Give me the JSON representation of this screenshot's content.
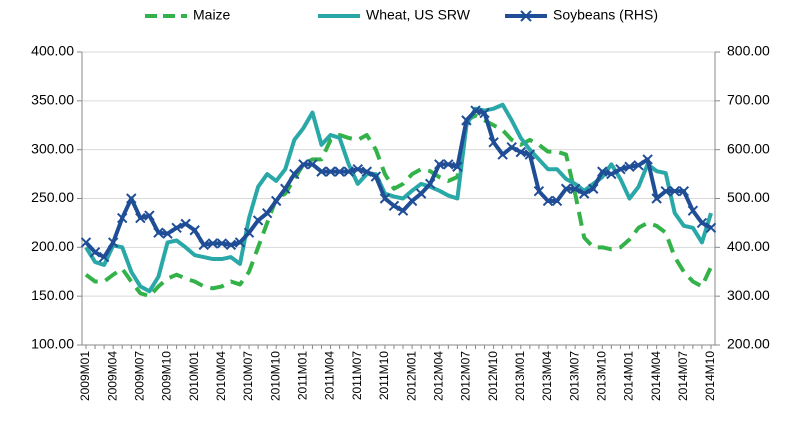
{
  "chart_data": {
    "type": "line",
    "categories": [
      "2009M01",
      null,
      null,
      "2009M04",
      null,
      null,
      "2009M07",
      null,
      null,
      "2009M10",
      null,
      null,
      "2010M01",
      null,
      null,
      "2010M04",
      null,
      null,
      "2010M07",
      null,
      null,
      "2010M10",
      null,
      null,
      "2011M01",
      null,
      null,
      "2011M04",
      null,
      null,
      "2011M07",
      null,
      null,
      "2011M10",
      null,
      null,
      "2012M01",
      null,
      null,
      "2012M04",
      null,
      null,
      "2012M07",
      null,
      null,
      "2012M10",
      null,
      null,
      "2013M01",
      null,
      null,
      "2013M04",
      null,
      null,
      "2013M07",
      null,
      null,
      "2013M10",
      null,
      null,
      "2014M01",
      null,
      null,
      "2014M04",
      null,
      null,
      "2014M07",
      null,
      null,
      "2014M10"
    ],
    "series": [
      {
        "name": "Maize",
        "color": "#33b24a",
        "dashed": true,
        "values": [
          172,
          165,
          165,
          172,
          178,
          165,
          153,
          150,
          160,
          168,
          172,
          168,
          165,
          160,
          158,
          160,
          165,
          162,
          175,
          200,
          225,
          250,
          255,
          270,
          285,
          290,
          290,
          310,
          315,
          312,
          310,
          315,
          300,
          275,
          260,
          265,
          275,
          280,
          278,
          272,
          268,
          272,
          330,
          335,
          330,
          325,
          320,
          310,
          305,
          310,
          305,
          298,
          298,
          295,
          255,
          210,
          200,
          200,
          198,
          200,
          208,
          220,
          225,
          222,
          215,
          190,
          175,
          165,
          160,
          180
        ]
      },
      {
        "name": "Wheat, US SRW",
        "color": "#2aa8a8",
        "values": [
          200,
          185,
          182,
          202,
          200,
          175,
          160,
          155,
          170,
          205,
          207,
          200,
          192,
          190,
          188,
          188,
          190,
          183,
          230,
          262,
          275,
          268,
          280,
          310,
          322,
          338,
          305,
          315,
          312,
          285,
          265,
          275,
          275,
          255,
          252,
          250,
          258,
          265,
          262,
          258,
          253,
          250,
          325,
          342,
          340,
          342,
          346,
          330,
          312,
          300,
          290,
          280,
          280,
          270,
          265,
          258,
          265,
          272,
          285,
          270,
          250,
          262,
          285,
          278,
          276,
          235,
          222,
          220,
          205,
          235
        ]
      },
      {
        "name": "Soybeans (RHS)",
        "color": "#1f4e96",
        "axis": "y2",
        "marker": "x",
        "values": [
          410,
          390,
          380,
          410,
          460,
          500,
          460,
          465,
          430,
          428,
          440,
          448,
          435,
          405,
          408,
          408,
          405,
          410,
          430,
          455,
          470,
          495,
          520,
          550,
          570,
          570,
          555,
          555,
          555,
          555,
          560,
          555,
          545,
          500,
          485,
          475,
          495,
          510,
          530,
          570,
          570,
          565,
          660,
          680,
          675,
          615,
          590,
          605,
          595,
          590,
          515,
          495,
          495,
          520,
          520,
          510,
          520,
          555,
          550,
          560,
          565,
          568,
          580,
          500,
          515,
          515,
          515,
          475,
          450,
          440
        ]
      }
    ],
    "ylim": [
      100,
      400
    ],
    "yticks": [
      {
        "value": 100,
        "label": "100.00"
      },
      {
        "value": 150,
        "label": "150.00"
      },
      {
        "value": 200,
        "label": "200.00"
      },
      {
        "value": 250,
        "label": "250.00"
      },
      {
        "value": 300,
        "label": "300.00"
      },
      {
        "value": 350,
        "label": "350.00"
      },
      {
        "value": 400,
        "label": "400.00"
      }
    ],
    "y2lim": [
      200,
      800
    ],
    "y2ticks": [
      {
        "value": 200,
        "label": "200.00"
      },
      {
        "value": 300,
        "label": "300.00"
      },
      {
        "value": 400,
        "label": "400.00"
      },
      {
        "value": 500,
        "label": "500.00"
      },
      {
        "value": 600,
        "label": "600.00"
      },
      {
        "value": 700,
        "label": "700.00"
      },
      {
        "value": 800,
        "label": "800.00"
      }
    ],
    "grid": true,
    "legend": "top"
  }
}
